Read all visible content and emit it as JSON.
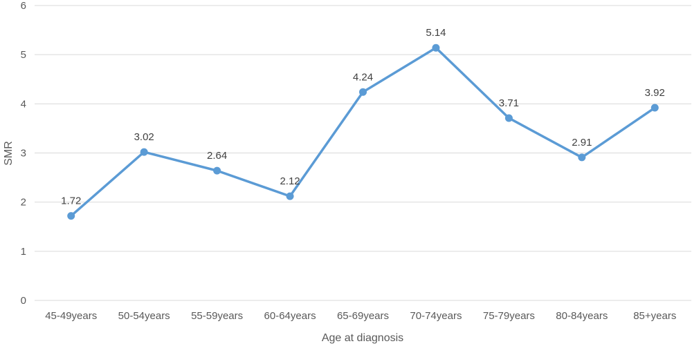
{
  "chart_data": {
    "type": "line",
    "title": "",
    "xlabel": "Age at diagnosis",
    "ylabel": "SMR",
    "categories": [
      "45-49years",
      "50-54years",
      "55-59years",
      "60-64years",
      "65-69years",
      "70-74years",
      "75-79years",
      "80-84years",
      "85+years"
    ],
    "series": [
      {
        "values": [
          1.72,
          3.02,
          2.64,
          2.12,
          4.24,
          5.14,
          3.71,
          2.91,
          3.92
        ],
        "labels": [
          "1.72",
          "3.02",
          "2.64",
          "2.12",
          "4.24",
          "5.14",
          "3.71",
          "2.91",
          "3.92"
        ],
        "color": "#5b9bd5"
      }
    ],
    "ylim": [
      0,
      6
    ],
    "yticks": [
      0,
      1,
      2,
      3,
      4,
      5,
      6
    ],
    "grid": true,
    "legend": "none"
  }
}
